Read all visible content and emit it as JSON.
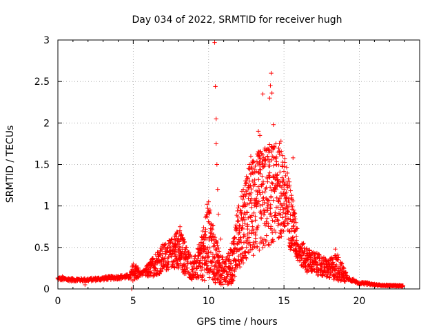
{
  "chart_data": {
    "type": "scatter",
    "title": "Day 034 of 2022, SRMTID for receiver hugh",
    "xlabel": "GPS time / hours",
    "ylabel": "SRMTID / TECUs",
    "xlim": [
      0,
      24
    ],
    "ylim": [
      0,
      3
    ],
    "xticks": [
      0,
      5,
      10,
      15,
      20
    ],
    "yticks": [
      0,
      0.5,
      1,
      1.5,
      2,
      2.5,
      3
    ],
    "xtick_labels": [
      "0",
      "5",
      "10",
      "15",
      "20"
    ],
    "ytick_labels": [
      "0",
      "0.5",
      "1",
      "1.5",
      "2",
      "2.5",
      "3"
    ],
    "grid": true,
    "marker": "+",
    "series_color": "#ff0000",
    "envelope": {
      "x": [
        0,
        1,
        2,
        3,
        4,
        4.8,
        5,
        5.5,
        6,
        6.5,
        7,
        7.5,
        8,
        8.5,
        9,
        9.5,
        10,
        10.5,
        11,
        11.5,
        12,
        12.5,
        13,
        13.5,
        14,
        14.5,
        15,
        15.5,
        16,
        16.5,
        17,
        17.5,
        18,
        18.5,
        19,
        19.5,
        20,
        20.5,
        21,
        21.5,
        22,
        22.5,
        22.9
      ],
      "low": [
        0.07,
        0.06,
        0.06,
        0.07,
        0.08,
        0.08,
        0.1,
        0.12,
        0.14,
        0.16,
        0.2,
        0.25,
        0.25,
        0.15,
        0.1,
        0.1,
        0.1,
        0.05,
        0.05,
        0.05,
        0.25,
        0.35,
        0.4,
        0.45,
        0.5,
        0.6,
        0.6,
        0.45,
        0.3,
        0.2,
        0.18,
        0.15,
        0.12,
        0.1,
        0.08,
        0.06,
        0.04,
        0.03,
        0.03,
        0.03,
        0.02,
        0.02,
        0.02
      ],
      "high": [
        0.18,
        0.16,
        0.16,
        0.18,
        0.2,
        0.22,
        0.3,
        0.25,
        0.3,
        0.45,
        0.55,
        0.6,
        0.75,
        0.55,
        0.35,
        0.6,
        1.05,
        0.6,
        0.35,
        0.5,
        1.05,
        1.4,
        1.6,
        1.7,
        1.75,
        1.75,
        1.65,
        1.2,
        0.6,
        0.5,
        0.45,
        0.4,
        0.35,
        0.45,
        0.25,
        0.15,
        0.1,
        0.1,
        0.07,
        0.06,
        0.06,
        0.06,
        0.05
      ]
    },
    "points": [
      [
        0.0,
        0.12
      ],
      [
        0.3,
        0.15
      ],
      [
        0.7,
        0.1
      ],
      [
        1.3,
        0.12
      ],
      [
        1.8,
        0.05
      ],
      [
        2.5,
        0.13
      ],
      [
        3.2,
        0.15
      ],
      [
        4.0,
        0.14
      ],
      [
        4.5,
        0.16
      ],
      [
        5.0,
        0.3
      ],
      [
        5.2,
        0.28
      ],
      [
        4.9,
        0.0
      ],
      [
        6.3,
        0.35
      ],
      [
        6.8,
        0.45
      ],
      [
        7.3,
        0.5
      ],
      [
        7.6,
        0.55
      ],
      [
        7.8,
        0.58
      ],
      [
        8.1,
        0.75
      ],
      [
        8.3,
        0.6
      ],
      [
        9.5,
        0.55
      ],
      [
        9.9,
        1.02
      ],
      [
        10.0,
        1.05
      ],
      [
        10.1,
        0.95
      ],
      [
        10.4,
        2.97
      ],
      [
        10.45,
        2.44
      ],
      [
        10.5,
        2.05
      ],
      [
        10.5,
        1.75
      ],
      [
        10.55,
        1.5
      ],
      [
        10.6,
        1.2
      ],
      [
        10.65,
        0.9
      ],
      [
        10.8,
        0.6
      ],
      [
        11.1,
        0.3
      ],
      [
        11.6,
        0.45
      ],
      [
        12.0,
        1.0
      ],
      [
        12.3,
        1.2
      ],
      [
        12.5,
        1.3
      ],
      [
        12.7,
        1.5
      ],
      [
        12.8,
        1.6
      ],
      [
        12.9,
        1.3
      ],
      [
        13.1,
        1.48
      ],
      [
        13.3,
        1.9
      ],
      [
        13.4,
        1.85
      ],
      [
        13.6,
        2.35
      ],
      [
        13.7,
        1.55
      ],
      [
        13.9,
        1.6
      ],
      [
        14.05,
        2.3
      ],
      [
        14.1,
        2.45
      ],
      [
        14.15,
        2.6
      ],
      [
        14.2,
        2.36
      ],
      [
        14.3,
        1.98
      ],
      [
        14.5,
        1.5
      ],
      [
        14.6,
        1.65
      ],
      [
        14.7,
        1.75
      ],
      [
        14.8,
        1.78
      ],
      [
        14.9,
        1.48
      ],
      [
        15.0,
        1.25
      ],
      [
        15.2,
        0.9
      ],
      [
        15.4,
        0.55
      ],
      [
        15.6,
        1.58
      ],
      [
        15.8,
        0.8
      ],
      [
        16.0,
        0.45
      ],
      [
        16.3,
        0.55
      ],
      [
        16.5,
        0.42
      ],
      [
        16.8,
        0.25
      ],
      [
        17.3,
        0.22
      ],
      [
        17.9,
        0.2
      ],
      [
        18.4,
        0.48
      ],
      [
        18.6,
        0.35
      ],
      [
        19.0,
        0.2
      ],
      [
        19.6,
        0.12
      ],
      [
        20.3,
        0.08
      ],
      [
        21.0,
        0.06
      ],
      [
        21.8,
        0.05
      ],
      [
        22.5,
        0.04
      ],
      [
        22.9,
        0.04
      ]
    ]
  }
}
